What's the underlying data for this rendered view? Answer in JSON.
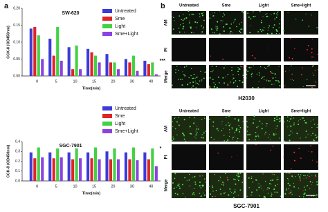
{
  "panel_labels": [
    "a",
    "b"
  ],
  "chart_data": [
    {
      "type": "bar",
      "title": "SW-620",
      "x_label": "Time(min)",
      "y_label": "CCK-8 (OD450nm)",
      "categories": [
        "0",
        "5",
        "10",
        "15",
        "20",
        "30",
        "40"
      ],
      "series": [
        {
          "name": "Untreated",
          "color": "#3b3bd8",
          "values": [
            0.14,
            0.11,
            0.085,
            0.08,
            0.065,
            0.05,
            0.045
          ]
        },
        {
          "name": "Sme",
          "color": "#e02424",
          "values": [
            0.145,
            0.06,
            0.02,
            0.07,
            0.04,
            0.04,
            0.035
          ]
        },
        {
          "name": "Light",
          "color": "#43d143",
          "values": [
            0.12,
            0.145,
            0.09,
            0.06,
            0.04,
            0.06,
            0.04
          ]
        },
        {
          "name": "Sme+Light",
          "color": "#8c42e0",
          "values": [
            0.05,
            0.045,
            0.02,
            0.04,
            0.02,
            0.015,
            0.005
          ]
        }
      ],
      "ylim": [
        0,
        0.2
      ],
      "yticks": [
        {
          "value": 0,
          "label": "0.00"
        },
        {
          "value": 0.05,
          "label": "0.05"
        },
        {
          "value": 0.1,
          "label": "0.10"
        },
        {
          "value": 0.15,
          "label": "0.15"
        },
        {
          "value": 0.2,
          "label": "0.20"
        }
      ],
      "annotations": [
        {
          "text": "***",
          "category": "40"
        }
      ]
    },
    {
      "type": "bar",
      "title": "SGC-7901",
      "x_label": "Time(min)",
      "y_label": "CCK-8 (OD450nm)",
      "categories": [
        "0",
        "5",
        "10",
        "15",
        "20",
        "30",
        "40"
      ],
      "series": [
        {
          "name": "Untreated",
          "color": "#3b3bd8",
          "values": [
            0.29,
            0.29,
            0.29,
            0.29,
            0.3,
            0.29,
            0.29
          ]
        },
        {
          "name": "Sme",
          "color": "#e02424",
          "values": [
            0.23,
            0.23,
            0.22,
            0.23,
            0.22,
            0.22,
            0.22
          ]
        },
        {
          "name": "Light",
          "color": "#43d143",
          "values": [
            0.34,
            0.33,
            0.33,
            0.34,
            0.33,
            0.34,
            0.33
          ]
        },
        {
          "name": "Sme+Light",
          "color": "#8c42e0",
          "values": [
            0.24,
            0.24,
            0.23,
            0.22,
            0.22,
            0.21,
            0.15
          ]
        }
      ],
      "ylim": [
        0,
        0.4
      ],
      "yticks": [
        {
          "value": 0,
          "label": "0.0"
        },
        0.1,
        0.2,
        0.3,
        0.4
      ],
      "annotations": [
        {
          "text": "*",
          "category": "40"
        }
      ]
    }
  ],
  "image_grids": [
    {
      "columns": [
        "Untreated",
        "Sme",
        "Light",
        "Sme+light"
      ],
      "rows": [
        "AM",
        "PI",
        "Merge"
      ],
      "caption": "H2030"
    },
    {
      "columns": [
        "Untreated",
        "Sme",
        "Light",
        "Sme+light"
      ],
      "rows": [
        "AM",
        "PI",
        "Merge"
      ],
      "caption": "SGC-7901"
    }
  ]
}
